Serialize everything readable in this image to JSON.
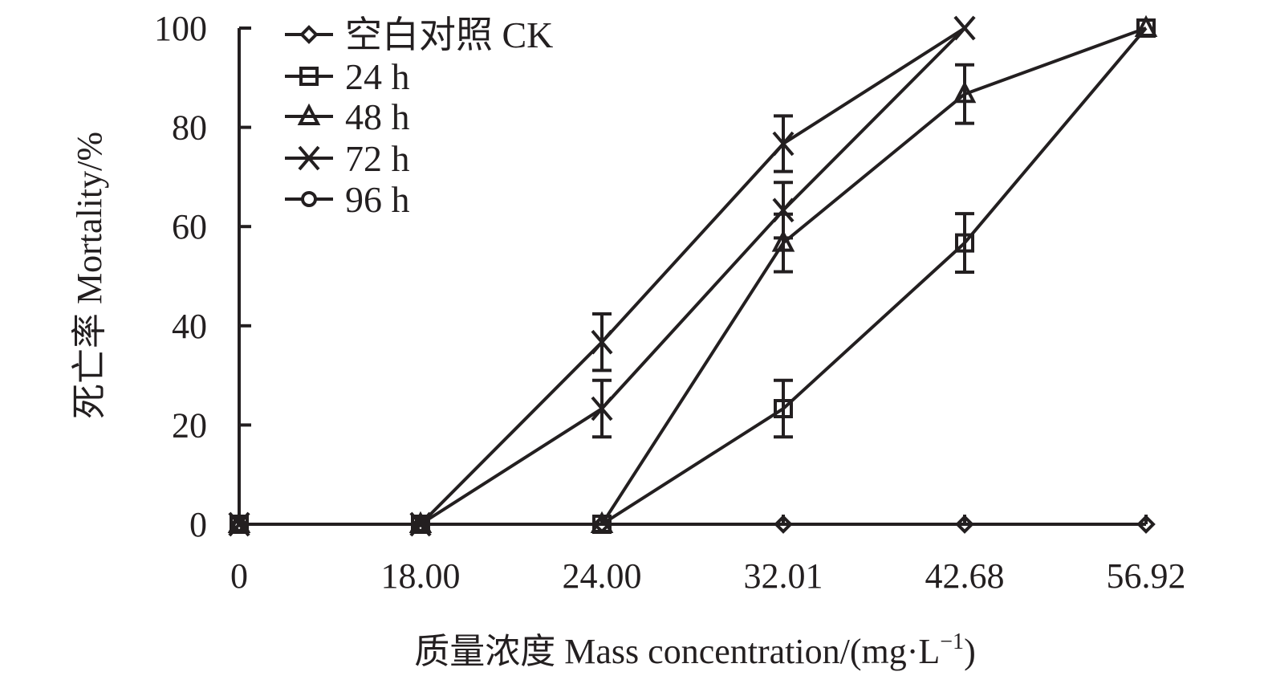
{
  "chart_data": {
    "type": "line",
    "title": "",
    "xlabel": "质量浓度 Mass concentration/(mg·L⁻¹)",
    "xlabel_parts": {
      "main": "质量浓度 Mass concentration/(mg·L",
      "sup": "−1",
      "close": ")"
    },
    "ylabel": "死亡率 Mortality/%",
    "ylim": [
      0,
      100
    ],
    "yticks": [
      "0",
      "20",
      "40",
      "60",
      "80",
      "100"
    ],
    "categories": [
      "0",
      "18.00",
      "24.00",
      "32.01",
      "42.68",
      "56.92"
    ],
    "legend_position": "top-left",
    "grid": false,
    "series": [
      {
        "name": "空白对照 CK",
        "marker": "diamond",
        "values": [
          0,
          0,
          0,
          0,
          0,
          0
        ],
        "errors": [
          0,
          0,
          0,
          0,
          0,
          0
        ]
      },
      {
        "name": "24 h",
        "marker": "square",
        "values": [
          0,
          0,
          0,
          23.3,
          56.7,
          100
        ],
        "errors": [
          0,
          0,
          0,
          5.7,
          5.9,
          0
        ]
      },
      {
        "name": "48 h",
        "marker": "triangle",
        "values": [
          0,
          0,
          0,
          56.7,
          86.7,
          100
        ],
        "errors": [
          0,
          0,
          0,
          5.8,
          5.9,
          0
        ]
      },
      {
        "name": "72 h",
        "marker": "x",
        "values": [
          0,
          0,
          23.3,
          63.3,
          100,
          null
        ],
        "errors": [
          0,
          0,
          5.7,
          5.6,
          0,
          null
        ]
      },
      {
        "name": "96 h",
        "marker": "circle",
        "plot_marker": "x",
        "values": [
          0,
          0,
          36.7,
          76.7,
          100,
          null
        ],
        "errors": [
          0,
          0,
          5.7,
          5.6,
          0,
          null
        ]
      }
    ]
  }
}
